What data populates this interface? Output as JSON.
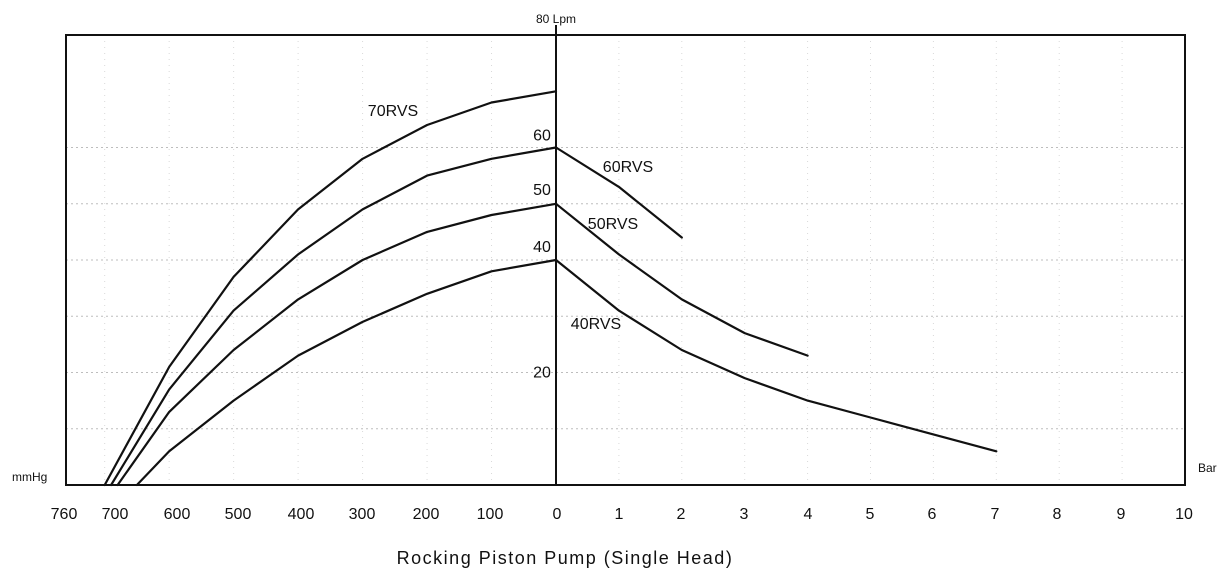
{
  "chart_data": {
    "type": "line",
    "title": "Rocking Piston Pump (Single Head)",
    "left_unit_label": "mmHg",
    "right_unit_label": "Bar",
    "top_unit_label": "80 Lpm",
    "vacuum_ticks": [
      "760",
      "700",
      "600",
      "500",
      "400",
      "300",
      "200",
      "100"
    ],
    "pressure_ticks": [
      "0",
      "1",
      "2",
      "3",
      "4",
      "5",
      "6",
      "7",
      "8",
      "9",
      "10"
    ],
    "y_tick_labels": [
      "20",
      "40",
      "50",
      "60"
    ],
    "ylim": [
      0,
      80
    ],
    "grid": true,
    "series": [
      {
        "name": "70RVS",
        "vacuum_points": [
          {
            "x": 700,
            "y": 0
          },
          {
            "x": 600,
            "y": 21
          },
          {
            "x": 500,
            "y": 37
          },
          {
            "x": 400,
            "y": 49
          },
          {
            "x": 300,
            "y": 58
          },
          {
            "x": 200,
            "y": 64
          },
          {
            "x": 100,
            "y": 68
          },
          {
            "x": 0,
            "y": 70
          }
        ],
        "pressure_points": []
      },
      {
        "name": "60RVS",
        "vacuum_points": [
          {
            "x": 690,
            "y": 0
          },
          {
            "x": 600,
            "y": 17
          },
          {
            "x": 500,
            "y": 31
          },
          {
            "x": 400,
            "y": 41
          },
          {
            "x": 300,
            "y": 49
          },
          {
            "x": 200,
            "y": 55
          },
          {
            "x": 100,
            "y": 58
          },
          {
            "x": 0,
            "y": 60
          }
        ],
        "pressure_points": [
          {
            "x": 0,
            "y": 60
          },
          {
            "x": 1,
            "y": 53
          },
          {
            "x": 2,
            "y": 44
          }
        ]
      },
      {
        "name": "50RVS",
        "vacuum_points": [
          {
            "x": 680,
            "y": 0
          },
          {
            "x": 600,
            "y": 13
          },
          {
            "x": 500,
            "y": 24
          },
          {
            "x": 400,
            "y": 33
          },
          {
            "x": 300,
            "y": 40
          },
          {
            "x": 200,
            "y": 45
          },
          {
            "x": 100,
            "y": 48
          },
          {
            "x": 0,
            "y": 50
          }
        ],
        "pressure_points": [
          {
            "x": 0,
            "y": 50
          },
          {
            "x": 1,
            "y": 41
          },
          {
            "x": 2,
            "y": 33
          },
          {
            "x": 3,
            "y": 27
          },
          {
            "x": 4,
            "y": 23
          }
        ]
      },
      {
        "name": "40RVS",
        "vacuum_points": [
          {
            "x": 650,
            "y": 0
          },
          {
            "x": 600,
            "y": 6
          },
          {
            "x": 500,
            "y": 15
          },
          {
            "x": 400,
            "y": 23
          },
          {
            "x": 300,
            "y": 29
          },
          {
            "x": 200,
            "y": 34
          },
          {
            "x": 100,
            "y": 38
          },
          {
            "x": 0,
            "y": 40
          }
        ],
        "pressure_points": [
          {
            "x": 0,
            "y": 40
          },
          {
            "x": 1,
            "y": 31
          },
          {
            "x": 2,
            "y": 24
          },
          {
            "x": 3,
            "y": 19
          },
          {
            "x": 4,
            "y": 15
          },
          {
            "x": 5,
            "y": 12
          },
          {
            "x": 6,
            "y": 9
          },
          {
            "x": 7,
            "y": 6
          }
        ]
      }
    ]
  }
}
